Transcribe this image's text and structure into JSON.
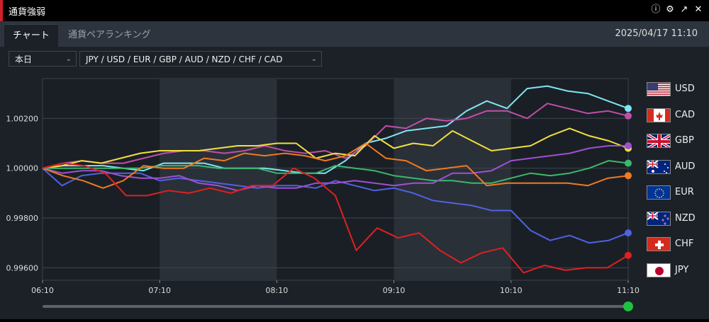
{
  "window": {
    "title": "通貨強弱"
  },
  "tabs": [
    {
      "label": "チャート"
    },
    {
      "label": "通貨ペアランキング"
    }
  ],
  "datetime": "2025/04/17 11:10",
  "controls": {
    "period": "本日",
    "pairs": "JPY / USD / EUR / GBP / AUD / NZD / CHF / CAD"
  },
  "icons": {
    "help": "help-icon",
    "settings": "gear-icon",
    "popout": "popout-icon",
    "close": "close-icon"
  },
  "legend": [
    {
      "code": "USD",
      "flag": "us-flag"
    },
    {
      "code": "CAD",
      "flag": "ca-flag"
    },
    {
      "code": "GBP",
      "flag": "gb-flag"
    },
    {
      "code": "AUD",
      "flag": "au-flag"
    },
    {
      "code": "EUR",
      "flag": "eu-flag"
    },
    {
      "code": "NZD",
      "flag": "nz-flag"
    },
    {
      "code": "CHF",
      "flag": "ch-flag"
    },
    {
      "code": "JPY",
      "flag": "jp-flag"
    }
  ],
  "chart_data": {
    "type": "line",
    "x_ticks": [
      "06:10",
      "07:10",
      "08:10",
      "09:10",
      "10:10",
      "11:10"
    ],
    "y_ticks": [
      "1.00200",
      "1.00000",
      "0.99800",
      "0.99600"
    ],
    "ylim": [
      0.9955,
      1.0036
    ],
    "x_start": "06:10",
    "x_end": "11:10",
    "grid": true,
    "slider_position": 1.0,
    "series": [
      {
        "name": "USD",
        "color": "#7fe6f2",
        "values": [
          1.0,
          1.0001,
          1.0001,
          1.0001,
          1.0,
          0.9999,
          1.0002,
          1.0002,
          1.0002,
          1.0,
          1.0,
          1.0,
          0.9999,
          0.9998,
          0.9998,
          1.0003,
          1.001,
          1.0012,
          1.0015,
          1.0016,
          1.0017,
          1.0023,
          1.0027,
          1.0024,
          1.0032,
          1.0033,
          1.0031,
          1.003,
          1.0027,
          1.0024
        ]
      },
      {
        "name": "CAD",
        "color": "#c04fa8",
        "values": [
          1.0,
          1.0002,
          1.0003,
          1.0002,
          1.0002,
          1.0004,
          1.0006,
          1.0007,
          1.0007,
          1.0006,
          1.0007,
          1.0009,
          1.0007,
          1.0006,
          1.0007,
          1.0004,
          1.0009,
          1.0017,
          1.0016,
          1.002,
          1.0019,
          1.002,
          1.0023,
          1.0023,
          1.002,
          1.0026,
          1.0024,
          1.0022,
          1.0023,
          1.0021
        ]
      },
      {
        "name": "GBP",
        "color": "#f0e040",
        "values": [
          1.0,
          1.0001,
          1.0003,
          1.0002,
          1.0004,
          1.0006,
          1.0007,
          1.0007,
          1.0007,
          1.0008,
          1.0009,
          1.0009,
          1.001,
          1.001,
          1.0004,
          1.0006,
          1.0005,
          1.0013,
          1.0008,
          1.001,
          1.0009,
          1.0015,
          1.0011,
          1.0007,
          1.0008,
          1.0009,
          1.0013,
          1.0016,
          1.0013,
          1.0011,
          1.0008
        ]
      },
      {
        "name": "AUD",
        "color": "#3cb86a",
        "values": [
          1.0,
          1.0,
          1.0,
          1.0,
          1.0,
          1.0,
          1.0001,
          1.0001,
          1.0001,
          1.0,
          1.0,
          1.0,
          0.9998,
          0.9998,
          0.9998,
          1.0001,
          1.0,
          0.9999,
          0.9997,
          0.9996,
          0.9995,
          0.9995,
          0.9994,
          0.9994,
          0.9996,
          0.9998,
          0.9997,
          0.9998,
          1.0,
          1.0003,
          1.0002
        ]
      },
      {
        "name": "EUR",
        "color": "#4f62e0",
        "values": [
          1.0,
          0.9993,
          0.9997,
          0.9998,
          0.9998,
          0.9998,
          0.9995,
          0.9996,
          0.9995,
          0.9994,
          0.9993,
          0.9992,
          0.9993,
          0.9993,
          0.9992,
          0.9995,
          0.9993,
          0.9991,
          0.9992,
          0.999,
          0.9987,
          0.9986,
          0.9985,
          0.9983,
          0.9983,
          0.9975,
          0.9971,
          0.9973,
          0.997,
          0.9971,
          0.9974
        ]
      },
      {
        "name": "NZD",
        "color": "#a050d0",
        "values": [
          1.0,
          0.9998,
          0.9999,
          0.9999,
          0.9997,
          0.9996,
          0.9996,
          0.9997,
          0.9994,
          0.9993,
          0.9991,
          0.9993,
          0.9992,
          0.9992,
          0.9994,
          0.9994,
          0.9995,
          0.9994,
          0.9993,
          0.9994,
          0.9994,
          0.9998,
          0.9998,
          0.9999,
          1.0003,
          1.0004,
          1.0005,
          1.0006,
          1.0008,
          1.0009,
          1.0009
        ]
      },
      {
        "name": "CHF",
        "color": "#f07a20",
        "values": [
          1.0,
          0.9997,
          0.9995,
          0.9992,
          0.9995,
          1.0001,
          1.0,
          1.0,
          1.0004,
          1.0003,
          1.0006,
          1.0005,
          1.0006,
          1.0005,
          1.0003,
          1.0005,
          1.001,
          1.0004,
          1.0003,
          0.9999,
          1.0,
          1.0001,
          0.9993,
          0.9994,
          0.9994,
          0.9994,
          0.9994,
          0.9993,
          0.9996,
          0.9997
        ]
      },
      {
        "name": "JPY",
        "color": "#e02020",
        "values": [
          1.0,
          1.0002,
          1.0001,
          0.9998,
          0.9989,
          0.9989,
          0.9991,
          0.999,
          0.9992,
          0.999,
          0.9993,
          0.9993,
          1.0,
          0.9996,
          0.9989,
          0.9967,
          0.9976,
          0.9972,
          0.9974,
          0.9967,
          0.9962,
          0.9966,
          0.9968,
          0.9958,
          0.9961,
          0.9959,
          0.996,
          0.996,
          0.9965
        ]
      }
    ]
  }
}
